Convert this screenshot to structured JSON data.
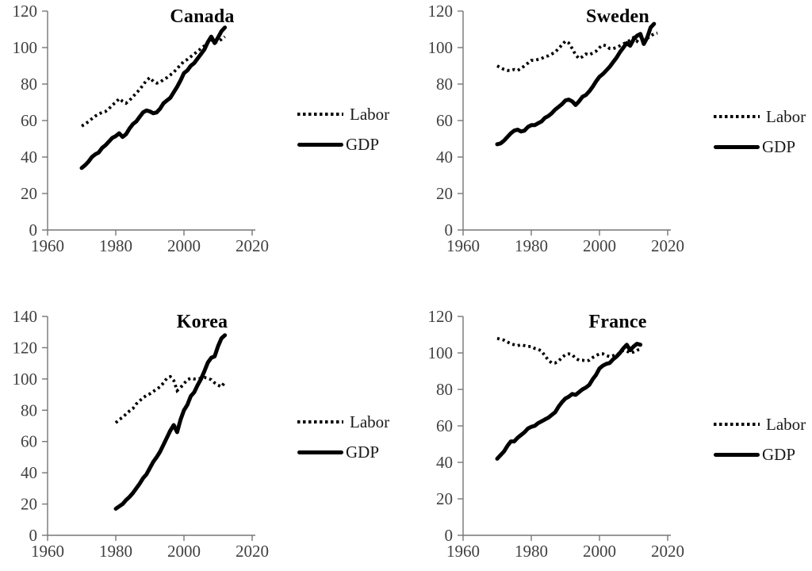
{
  "colors": {
    "background": "#ffffff",
    "data_line": "#000000",
    "axis": "#767676",
    "tick_label": "#404040",
    "title": "#000000"
  },
  "chart_data": [
    {
      "id": "canada",
      "type": "line",
      "title": "Canada",
      "xlim": [
        1960,
        2020
      ],
      "ylim": [
        0,
        120
      ],
      "xticks": [
        1960,
        1980,
        2000,
        2020
      ],
      "yticks": [
        0,
        20,
        40,
        60,
        80,
        100,
        120
      ],
      "grid": false,
      "legend_position": "right-of-plot",
      "series": [
        {
          "name": "Labor",
          "style": "dotted",
          "x_start": 1970,
          "x_step": 1,
          "values": [
            57,
            58,
            59.5,
            61,
            62.5,
            63.5,
            64.5,
            65,
            66.5,
            68.5,
            70,
            72,
            70.5,
            69.5,
            71,
            73,
            75,
            77,
            79.5,
            82,
            83.5,
            81.5,
            80.5,
            81,
            82.5,
            83.5,
            85,
            86.5,
            88.5,
            90.5,
            92.5,
            93.5,
            95,
            96.5,
            98,
            99.5,
            101,
            103,
            104.5,
            102.5,
            103.5,
            104.5,
            106
          ]
        },
        {
          "name": "GDP",
          "style": "solid",
          "x_start": 1970,
          "x_step": 1,
          "values": [
            34,
            35.5,
            37.5,
            40,
            41.5,
            42.5,
            45,
            46.5,
            48.5,
            50.5,
            51.5,
            53,
            51,
            52.5,
            55.5,
            58,
            59.5,
            62,
            64.5,
            65.5,
            65,
            64,
            64.5,
            66.5,
            69.5,
            71,
            72.5,
            75.5,
            78.5,
            82,
            86,
            87.5,
            90,
            91.5,
            94,
            96.5,
            99,
            103,
            106,
            102.5,
            105.5,
            109,
            111
          ]
        }
      ]
    },
    {
      "id": "sweden",
      "type": "line",
      "title": "Sweden",
      "xlim": [
        1960,
        2020
      ],
      "ylim": [
        0,
        120
      ],
      "xticks": [
        1960,
        1980,
        2000,
        2020
      ],
      "yticks": [
        0,
        20,
        40,
        60,
        80,
        100,
        120
      ],
      "grid": false,
      "legend_position": "right-of-plot",
      "series": [
        {
          "name": "Labor",
          "style": "dotted",
          "x_start": 1970,
          "x_step": 1,
          "values": [
            90,
            89,
            88,
            87.5,
            87.5,
            88,
            87.5,
            88.5,
            90,
            91.5,
            93,
            93,
            93.5,
            94,
            95,
            95.5,
            96.5,
            97.5,
            99.5,
            101.5,
            103.5,
            102.5,
            99.5,
            96,
            94,
            95,
            96.5,
            96,
            97,
            98,
            100,
            101.5,
            101,
            99.5,
            99.5,
            100,
            101,
            102,
            103,
            104,
            105.5,
            103.5,
            106,
            103.5,
            105,
            106.5,
            107.5,
            108
          ]
        },
        {
          "name": "GDP",
          "style": "solid",
          "x_start": 1970,
          "x_step": 1,
          "values": [
            47,
            47.5,
            49,
            51,
            53,
            54.5,
            55,
            54,
            54.5,
            56.5,
            57.5,
            57.5,
            58.5,
            59.5,
            61.5,
            62.5,
            64,
            66,
            67.5,
            69,
            71,
            71.5,
            70.5,
            68.5,
            70.5,
            73,
            74,
            76,
            78.5,
            81.5,
            84,
            85.5,
            87.5,
            89.5,
            92,
            94.5,
            97.5,
            100,
            102.5,
            101,
            104.5,
            106.5,
            107.5,
            102,
            105.5,
            111,
            113
          ]
        }
      ]
    },
    {
      "id": "korea",
      "type": "line",
      "title": "Korea",
      "xlim": [
        1960,
        2020
      ],
      "ylim": [
        0,
        140
      ],
      "xticks": [
        1960,
        1980,
        2000,
        2020
      ],
      "yticks": [
        0,
        20,
        40,
        60,
        80,
        100,
        120,
        140
      ],
      "grid": false,
      "legend_position": "right-of-plot",
      "series": [
        {
          "name": "Labor",
          "style": "dotted",
          "x_start": 1980,
          "x_step": 1,
          "values": [
            72,
            74,
            75.5,
            77.5,
            79.5,
            81,
            84,
            86,
            88,
            89.5,
            90.5,
            92,
            93.5,
            95,
            97.5,
            100.5,
            101.5,
            99,
            92.5,
            94.5,
            97,
            99.5,
            100.5,
            100,
            100,
            100.5,
            101,
            100.5,
            99.5,
            97.5,
            96,
            95,
            98
          ]
        },
        {
          "name": "GDP",
          "style": "solid",
          "x_start": 1980,
          "x_step": 1,
          "values": [
            17,
            18.5,
            20,
            22.5,
            24.5,
            27,
            30,
            33,
            36.5,
            39,
            43,
            47,
            50,
            53.5,
            58,
            62.5,
            67,
            70.5,
            66,
            74,
            80,
            83.5,
            89,
            91.5,
            96,
            100,
            105,
            110.5,
            113.5,
            114.5,
            121,
            126,
            128
          ]
        }
      ]
    },
    {
      "id": "france",
      "type": "line",
      "title": "France",
      "xlim": [
        1960,
        2020
      ],
      "ylim": [
        0,
        120
      ],
      "xticks": [
        1960,
        1980,
        2000,
        2020
      ],
      "yticks": [
        0,
        20,
        40,
        60,
        80,
        100,
        120
      ],
      "grid": false,
      "legend_position": "right-of-plot",
      "series": [
        {
          "name": "Labor",
          "style": "dotted",
          "x_start": 1970,
          "x_step": 1,
          "values": [
            108,
            107.5,
            107,
            106,
            105,
            104.5,
            104,
            104.5,
            104,
            103.5,
            103.5,
            102.5,
            102,
            101,
            98.5,
            96,
            94.5,
            94.5,
            95.5,
            97.5,
            99,
            99.5,
            99,
            97,
            96,
            96,
            95.5,
            96,
            97.5,
            98.5,
            99.5,
            99.5,
            98.5,
            98,
            98.5,
            99,
            100,
            101.5,
            101,
            100,
            100.5,
            101.5,
            102
          ]
        },
        {
          "name": "GDP",
          "style": "solid",
          "x_start": 1970,
          "x_step": 1,
          "values": [
            42,
            44,
            46,
            49,
            51.5,
            51.5,
            53.5,
            55,
            56.5,
            58.5,
            59.5,
            60,
            61.5,
            62.5,
            63.5,
            64.5,
            66,
            67.5,
            70.5,
            73,
            75,
            76,
            77.5,
            77,
            78.5,
            80,
            81,
            82.5,
            85.5,
            88,
            91.5,
            93,
            94,
            94.5,
            96.5,
            98,
            100,
            102.5,
            104.5,
            101.5,
            103.5,
            105,
            104.5
          ]
        }
      ]
    }
  ]
}
